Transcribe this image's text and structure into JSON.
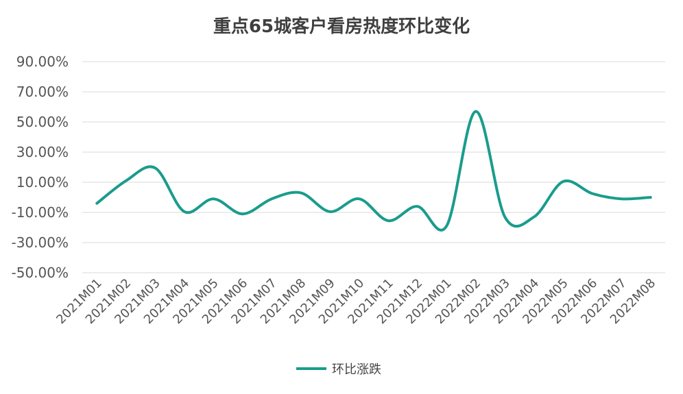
{
  "chart_data": {
    "type": "line",
    "title": "重点65城客户看房热度环比变化",
    "xlabel": "",
    "ylabel": "",
    "categories": [
      "2021M01",
      "2021M02",
      "2021M03",
      "2021M04",
      "2021M05",
      "2021M06",
      "2021M07",
      "2021M08",
      "2021M09",
      "2021M10",
      "2021M11",
      "2021M12",
      "2022M01",
      "2022M02",
      "2022M03",
      "2022M04",
      "2022M05",
      "2022M06",
      "2022M07",
      "2022M08"
    ],
    "series": [
      {
        "name": "环比涨跌",
        "color": "#1a9c8c",
        "values": [
          -4.0,
          11.0,
          19.5,
          -9.5,
          -1.0,
          -11.0,
          -1.0,
          3.0,
          -9.5,
          -1.0,
          -15.5,
          -6.0,
          -19.0,
          57.0,
          -13.0,
          -13.0,
          10.5,
          2.5,
          -1.0,
          0.0
        ]
      }
    ],
    "y_ticks": [
      "90.00%",
      "70.00%",
      "50.00%",
      "30.00%",
      "10.00%",
      "-10.00%",
      "-30.00%",
      "-50.00%"
    ],
    "ylim": [
      -50,
      90
    ],
    "grid": true,
    "legend_position": "bottom"
  }
}
